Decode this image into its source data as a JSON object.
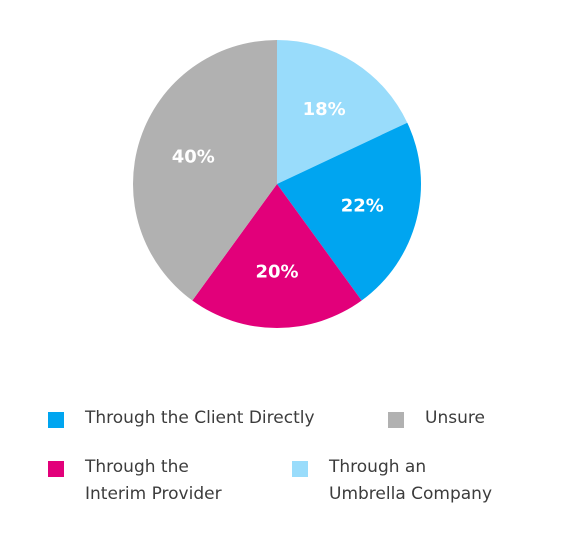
{
  "chart_data": {
    "type": "pie",
    "title": "",
    "slices": [
      {
        "label": "Through an Umbrella Company",
        "value": 18,
        "display": "18%",
        "color": "#99dcfb"
      },
      {
        "label": "Through the Client Directly",
        "value": 22,
        "display": "22%",
        "color": "#00a5f0"
      },
      {
        "label": "Through the Interim Provider",
        "value": 20,
        "display": "20%",
        "color": "#e2007a"
      },
      {
        "label": "Unsure",
        "value": 40,
        "display": "40%",
        "color": "#b1b1b1"
      }
    ],
    "start_angle_deg": 0,
    "direction": "clockwise",
    "legend_placement": "bottom"
  },
  "legend": [
    {
      "label": "Through the Client Directly",
      "color": "#00a5f0"
    },
    {
      "label": "Unsure",
      "color": "#b1b1b1"
    },
    {
      "label": "Through the\nInterim Provider",
      "color": "#e2007a"
    },
    {
      "label": "Through an\nUmbrella Company",
      "color": "#99dcfb"
    }
  ]
}
